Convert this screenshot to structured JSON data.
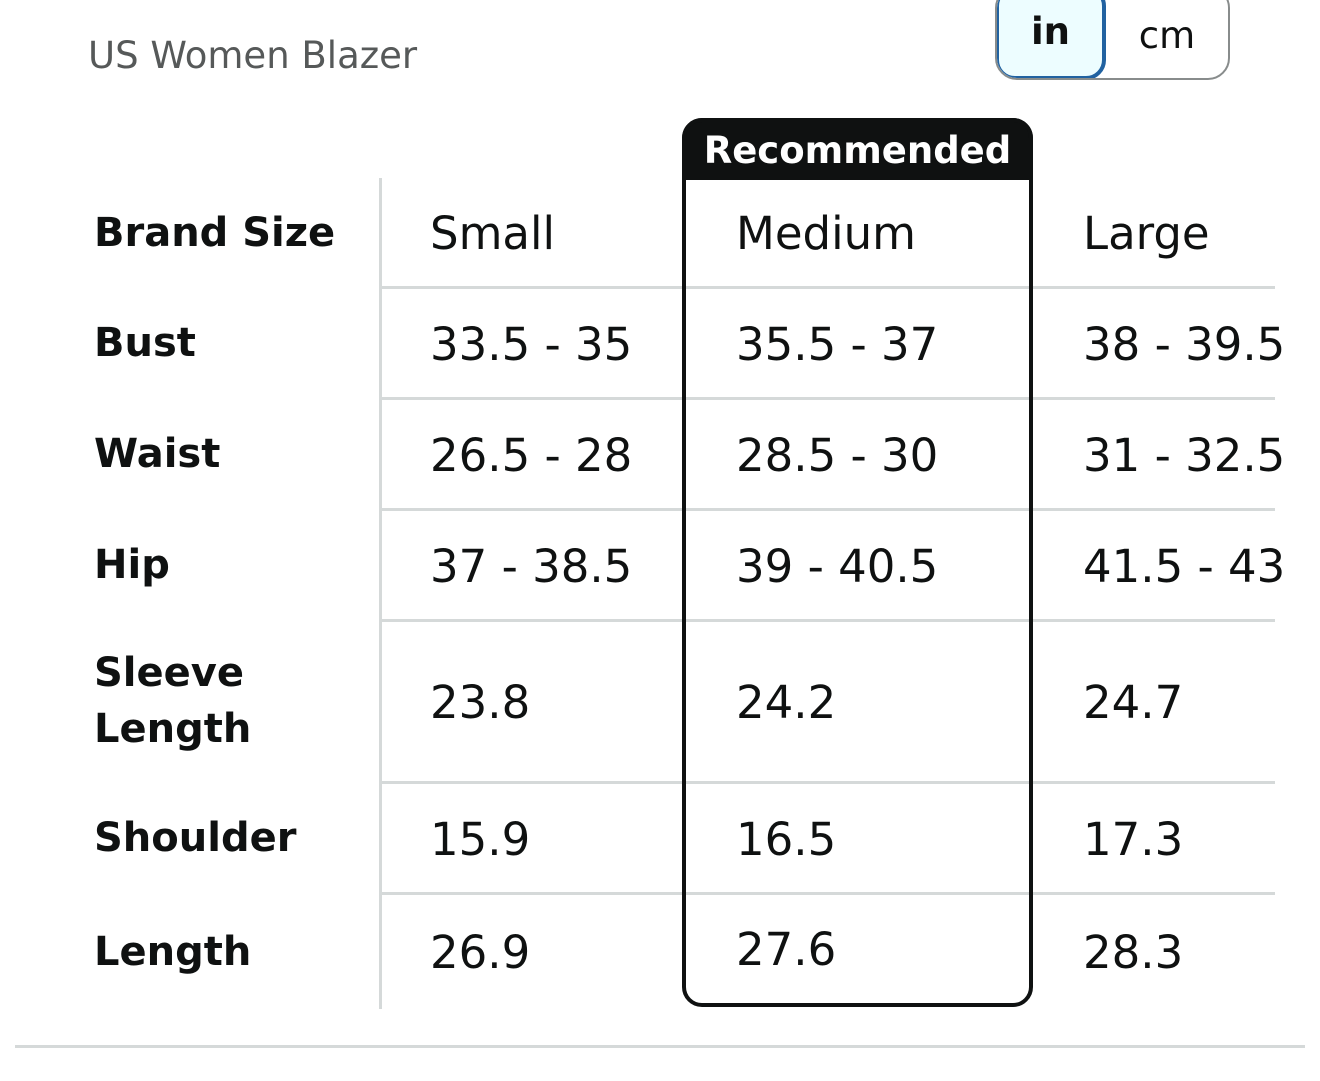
{
  "header": {
    "title": "US Women Blazer",
    "units": [
      {
        "label": "in",
        "selected": true
      },
      {
        "label": "cm",
        "selected": false
      }
    ]
  },
  "table": {
    "recommended_label": "Recommended",
    "recommended_column": "Medium",
    "header_label": "Brand Size",
    "columns": [
      "Small",
      "Medium",
      "Large"
    ],
    "rows": [
      {
        "label": "Bust",
        "values": [
          "33.5 - 35",
          "35.5 - 37",
          "38 - 39.5"
        ]
      },
      {
        "label": "Waist",
        "values": [
          "26.5 - 28",
          "28.5 - 30",
          "31 - 32.5"
        ]
      },
      {
        "label": "Hip",
        "values": [
          "37 - 38.5",
          "39 - 40.5",
          "41.5 - 43"
        ]
      },
      {
        "label": "Sleeve Length",
        "label_lines": [
          "Sleeve",
          "Length"
        ],
        "values": [
          "23.8",
          "24.2",
          "24.7"
        ]
      },
      {
        "label": "Shoulder",
        "values": [
          "15.9",
          "16.5",
          "17.3"
        ]
      },
      {
        "label": "Length",
        "values": [
          "26.9",
          "27.6",
          "28.3"
        ]
      }
    ]
  },
  "colors": {
    "text": "#0f1111",
    "title_gray": "#565959",
    "divider": "#d5d9d9",
    "toggle_selected_border": "#2162a1",
    "toggle_selected_bg": "#edfdff",
    "recommended_band": "#0f1111"
  }
}
